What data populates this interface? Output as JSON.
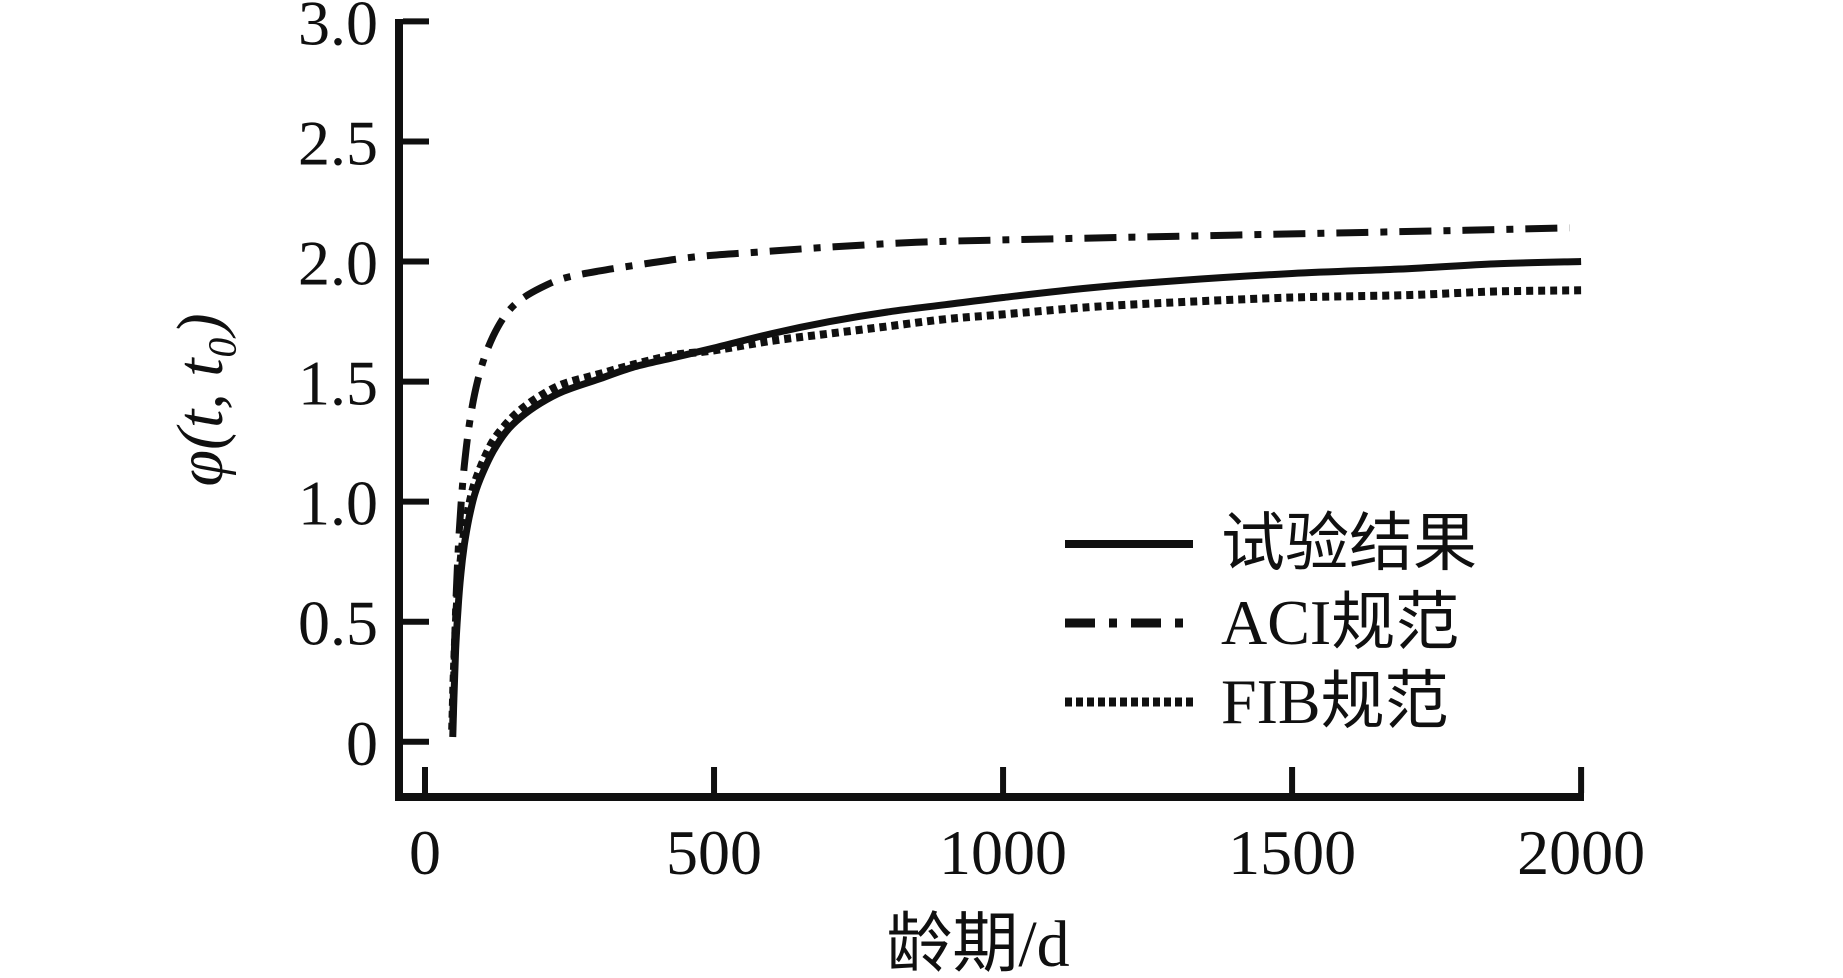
{
  "chart_data": {
    "type": "line",
    "title": "",
    "xlabel": "龄期/d",
    "ylabel": "φ(t, t₀)",
    "xlim": [
      -45,
      2005
    ],
    "ylim": [
      -0.23,
      3.01
    ],
    "x_ticks": [
      0,
      500,
      1000,
      1500,
      2000
    ],
    "x_tick_labels": [
      "0",
      "500",
      "1000",
      "1500",
      "2000"
    ],
    "y_ticks": [
      0,
      0.5,
      1.0,
      1.5,
      2.0,
      2.5,
      3.0
    ],
    "y_tick_labels": [
      "0",
      "0.5",
      "1.0",
      "1.5",
      "2.0",
      "2.5",
      "3.0"
    ],
    "grid": false,
    "legend_position": "inside lower right",
    "axis_color": "#101010",
    "series": [
      {
        "name": "试验结果",
        "style": "solid",
        "color": "#101010",
        "points": [
          [
            48,
            0.02
          ],
          [
            50,
            0.18
          ],
          [
            53,
            0.38
          ],
          [
            57,
            0.55
          ],
          [
            62,
            0.7
          ],
          [
            68,
            0.82
          ],
          [
            76,
            0.93
          ],
          [
            86,
            1.03
          ],
          [
            100,
            1.12
          ],
          [
            118,
            1.21
          ],
          [
            140,
            1.29
          ],
          [
            165,
            1.35
          ],
          [
            200,
            1.41
          ],
          [
            240,
            1.46
          ],
          [
            300,
            1.51
          ],
          [
            360,
            1.56
          ],
          [
            430,
            1.6
          ],
          [
            500,
            1.64
          ],
          [
            600,
            1.7
          ],
          [
            700,
            1.75
          ],
          [
            800,
            1.79
          ],
          [
            900,
            1.82
          ],
          [
            1000,
            1.85
          ],
          [
            1150,
            1.89
          ],
          [
            1300,
            1.92
          ],
          [
            1500,
            1.95
          ],
          [
            1700,
            1.97
          ],
          [
            1850,
            1.99
          ],
          [
            2000,
            2.0
          ]
        ]
      },
      {
        "name": "ACI规范",
        "style": "dash-dot",
        "color": "#101010",
        "points": [
          [
            48,
            0.08
          ],
          [
            50,
            0.3
          ],
          [
            53,
            0.55
          ],
          [
            57,
            0.78
          ],
          [
            62,
            0.98
          ],
          [
            68,
            1.15
          ],
          [
            76,
            1.31
          ],
          [
            86,
            1.45
          ],
          [
            100,
            1.58
          ],
          [
            118,
            1.69
          ],
          [
            140,
            1.78
          ],
          [
            165,
            1.84
          ],
          [
            200,
            1.89
          ],
          [
            240,
            1.93
          ],
          [
            300,
            1.96
          ],
          [
            380,
            1.99
          ],
          [
            470,
            2.02
          ],
          [
            580,
            2.04
          ],
          [
            700,
            2.06
          ],
          [
            850,
            2.08
          ],
          [
            1000,
            2.09
          ],
          [
            1200,
            2.1
          ],
          [
            1400,
            2.11
          ],
          [
            1600,
            2.12
          ],
          [
            1800,
            2.13
          ],
          [
            1980,
            2.14
          ]
        ]
      },
      {
        "name": "FIB规范",
        "style": "dotted",
        "color": "#101010",
        "points": [
          [
            47,
            0.05
          ],
          [
            49,
            0.22
          ],
          [
            52,
            0.42
          ],
          [
            56,
            0.6
          ],
          [
            61,
            0.74
          ],
          [
            67,
            0.86
          ],
          [
            75,
            0.97
          ],
          [
            85,
            1.07
          ],
          [
            99,
            1.16
          ],
          [
            117,
            1.25
          ],
          [
            139,
            1.32
          ],
          [
            164,
            1.38
          ],
          [
            199,
            1.44
          ],
          [
            239,
            1.49
          ],
          [
            299,
            1.53
          ],
          [
            359,
            1.57
          ],
          [
            429,
            1.61
          ],
          [
            500,
            1.63
          ],
          [
            600,
            1.67
          ],
          [
            700,
            1.7
          ],
          [
            800,
            1.73
          ],
          [
            900,
            1.76
          ],
          [
            1000,
            1.78
          ],
          [
            1150,
            1.81
          ],
          [
            1300,
            1.83
          ],
          [
            1500,
            1.85
          ],
          [
            1700,
            1.86
          ],
          [
            1850,
            1.875
          ],
          [
            2000,
            1.88
          ]
        ]
      }
    ]
  }
}
